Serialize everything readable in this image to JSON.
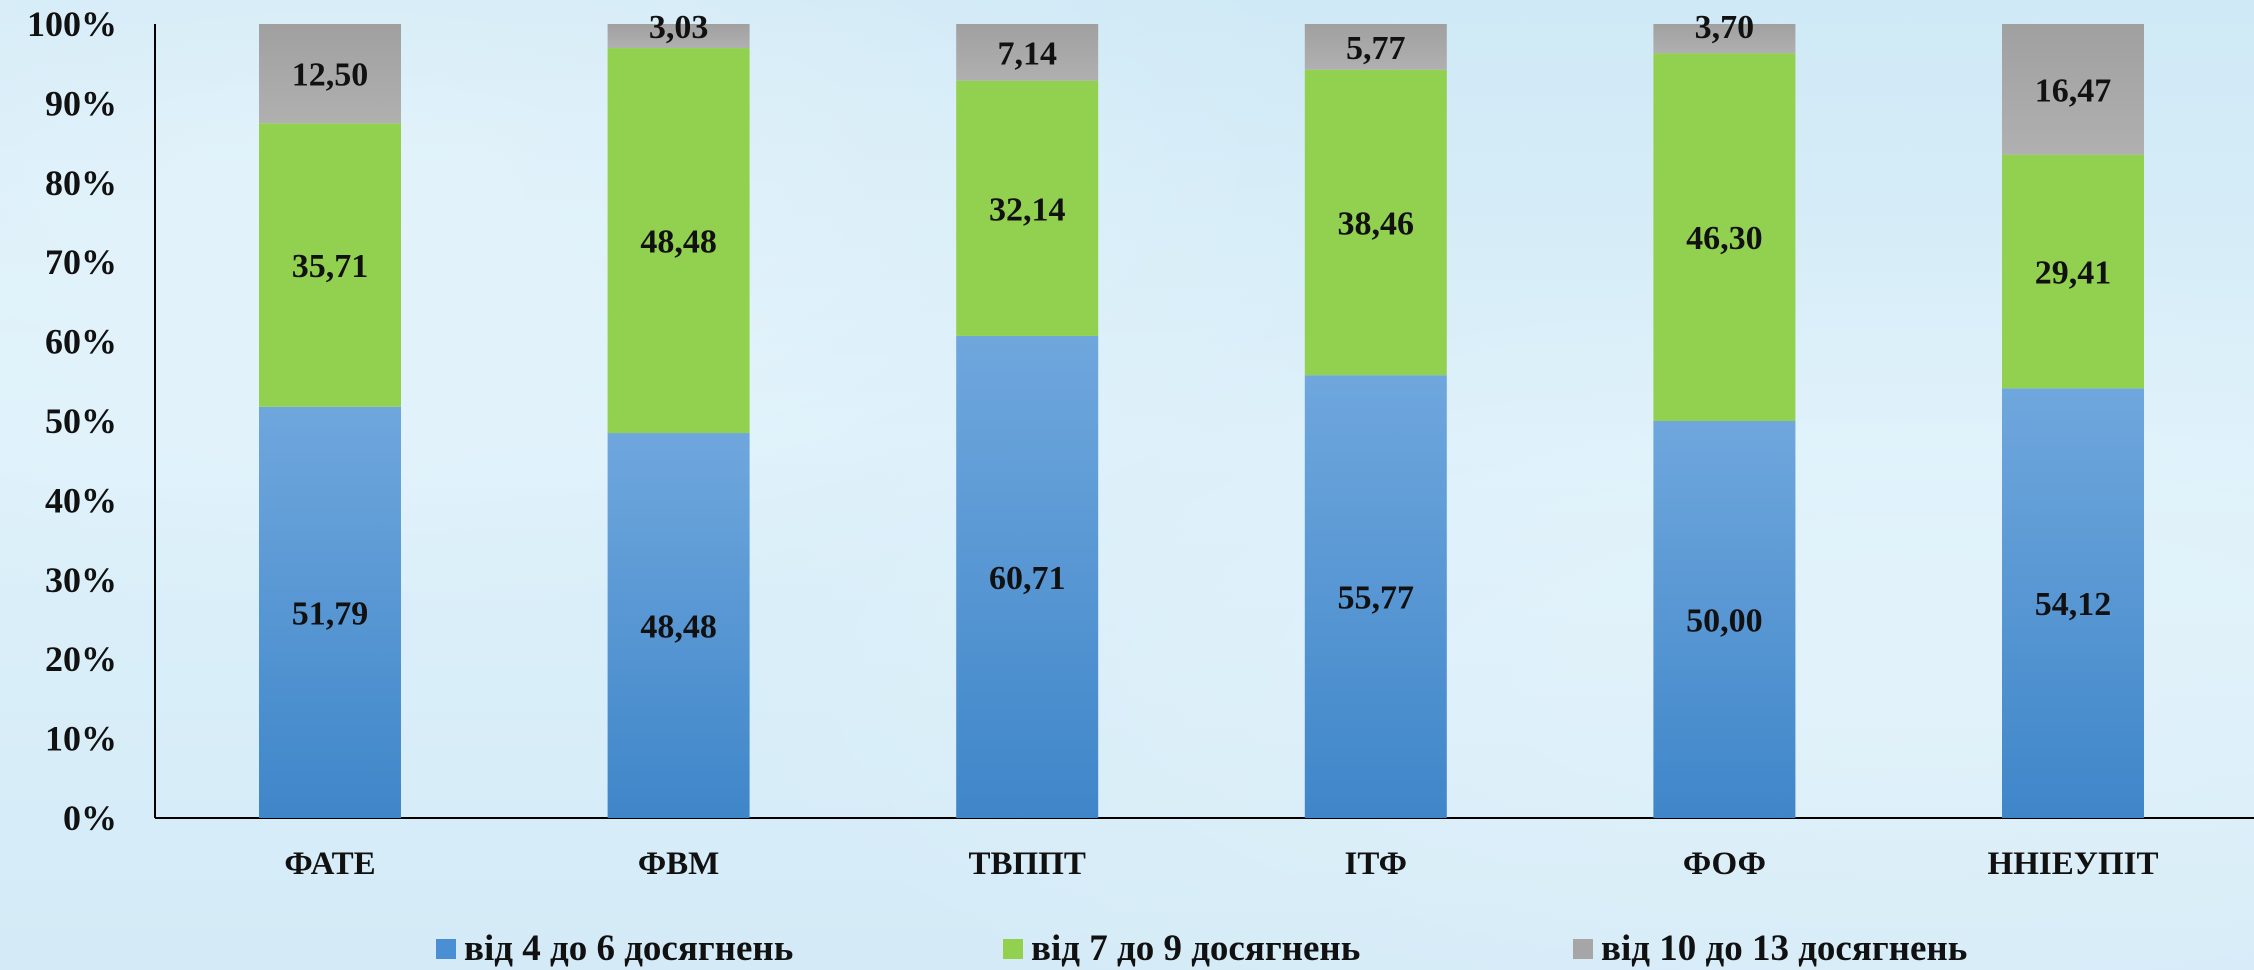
{
  "chart_data": {
    "type": "bar",
    "stacked": true,
    "percent_stacked": true,
    "categories": [
      "ФАТЕ",
      "ФВМ",
      "ТВППТ",
      "ІТФ",
      "ФОФ",
      "ННІЕУПІТ"
    ],
    "series": [
      {
        "name": "від 4 до 6 досягнень",
        "color": "#4a8fd4",
        "values": [
          51.79,
          48.48,
          60.71,
          55.77,
          50.0,
          54.12
        ],
        "labels": [
          "51,79",
          "48,48",
          "60,71",
          "55,77",
          "50,00",
          "54,12"
        ]
      },
      {
        "name": "від 7 до 9 досягнень",
        "color": "#92d050",
        "values": [
          35.71,
          48.48,
          32.14,
          38.46,
          46.3,
          29.41
        ],
        "labels": [
          "35,71",
          "48,48",
          "32,14",
          "38,46",
          "46,30",
          "29,41"
        ]
      },
      {
        "name": "від 10 до 13 досягнень",
        "color": "#a6a6a6",
        "values": [
          12.5,
          3.03,
          7.14,
          5.77,
          3.7,
          16.47
        ],
        "labels": [
          "12,50",
          "3,03",
          "7,14",
          "5,77",
          "3,70",
          "16,47"
        ]
      }
    ],
    "y_ticks": [
      "0%",
      "10%",
      "20%",
      "30%",
      "40%",
      "50%",
      "60%",
      "70%",
      "80%",
      "90%",
      "100%"
    ],
    "ylim": [
      0,
      100
    ],
    "title": "",
    "xlabel": "",
    "ylabel": "",
    "grid": false,
    "legend_position": "bottom"
  }
}
